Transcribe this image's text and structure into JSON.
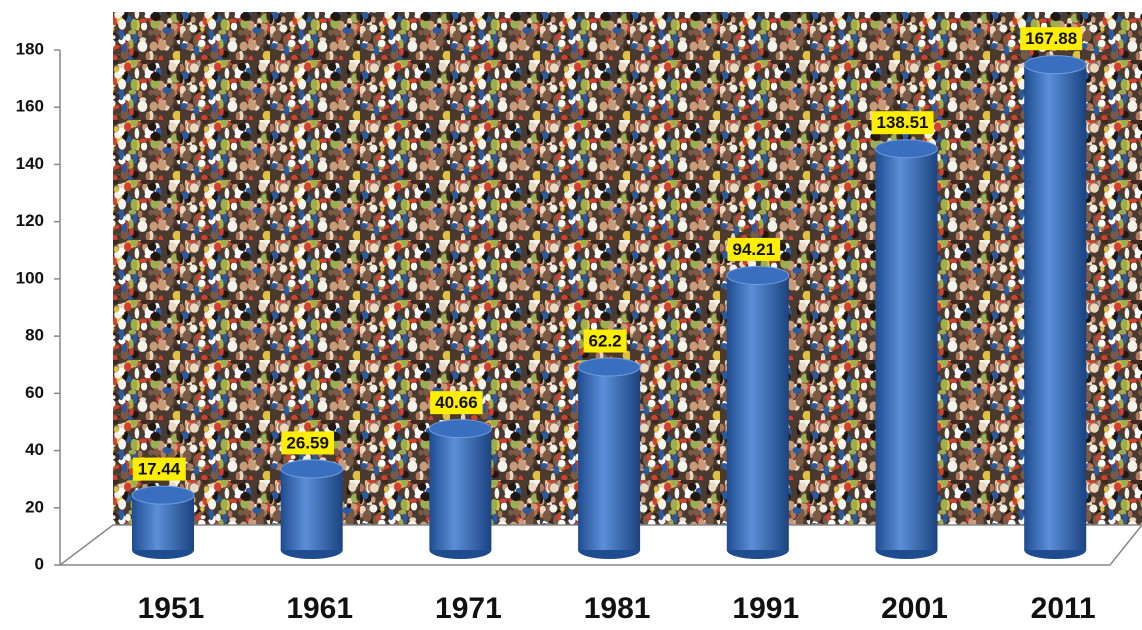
{
  "chart_data": {
    "type": "bar",
    "categories": [
      "1951",
      "1961",
      "1971",
      "1981",
      "1991",
      "2001",
      "2011"
    ],
    "values": [
      17.44,
      26.59,
      40.66,
      62.2,
      94.21,
      138.51,
      167.88
    ],
    "color": "#3a6fbf",
    "ylim": [
      0,
      180
    ],
    "yticks": [
      0,
      20,
      40,
      60,
      80,
      100,
      120,
      140,
      160,
      180
    ]
  }
}
